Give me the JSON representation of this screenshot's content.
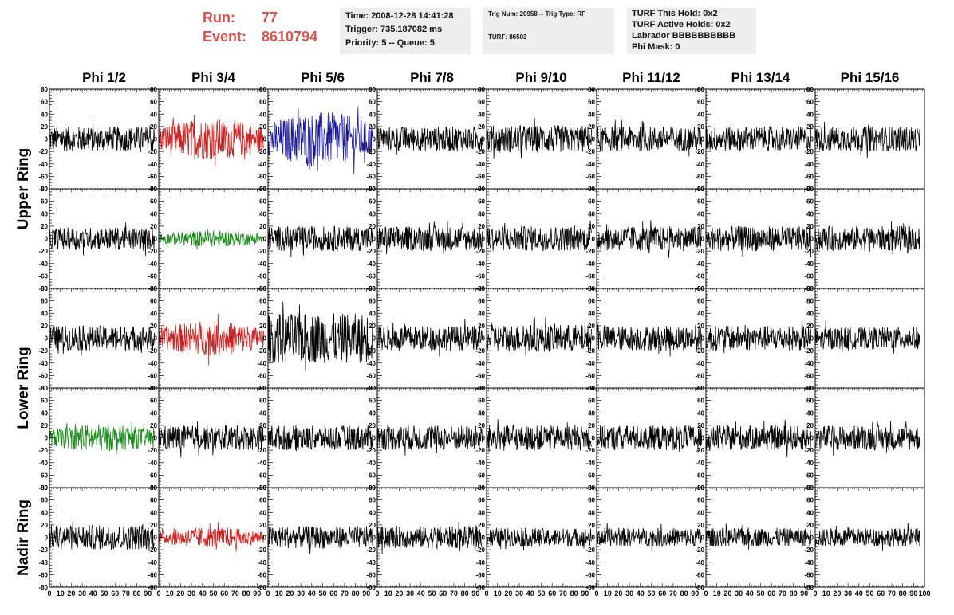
{
  "header": {
    "run_label": "Run:",
    "run_value": "77",
    "event_label": "Event:",
    "event_value": "8610794"
  },
  "info_box_1": {
    "time": "Time: 2008-12-28 14:41:28",
    "trigger": "Trigger: 735.187082 ms",
    "priority": "Priority: 5 -- Queue: 5"
  },
  "info_box_2": {
    "trig_num": "Trig Num: 20958 -- Trig Type: RF",
    "turf": "TURF: 86503"
  },
  "info_box_3": {
    "this_hold": "TURF This Hold: 0x2",
    "active_holds": "TURF Active Holds: 0x2",
    "labrador": "Labrador BBBBBBBBBB",
    "phi_mask": "Phi Mask: 0"
  },
  "colors": {
    "waveform": "#000000",
    "triggered_red": "#cc2222",
    "triggered_green": "#1a8a1a",
    "triggered_blue": "#1a1a99"
  },
  "chart_data": {
    "type": "line",
    "columns": [
      "Phi 1/2",
      "Phi 3/4",
      "Phi 5/6",
      "Phi 7/8",
      "Phi 9/10",
      "Phi 11/12",
      "Phi 13/14",
      "Phi 15/16"
    ],
    "rows": [
      {
        "title": "Upper Ring",
        "panels": 2
      },
      {
        "title": "Lower Ring",
        "panels": 2
      },
      {
        "title": "Nadir Ring",
        "panels": 1
      }
    ],
    "ylim": [
      -80,
      80
    ],
    "xlim": [
      0,
      100
    ],
    "y_ticks": [
      -80,
      -60,
      -40,
      -20,
      0,
      20,
      40,
      60,
      80
    ],
    "y_tick_labels": [
      "-80",
      "-60",
      "-40",
      "-20",
      "0",
      "20",
      "40",
      "60",
      "80"
    ],
    "x_ticks": [
      0,
      10,
      20,
      30,
      40,
      50,
      60,
      70,
      80,
      90,
      100
    ],
    "x_tick_labels": [
      "0",
      "10",
      "20",
      "30",
      "40",
      "50",
      "60",
      "70",
      "80",
      "90",
      "100"
    ],
    "highlighted": [
      {
        "panel_row": 0,
        "col": 1,
        "color": "red"
      },
      {
        "panel_row": 0,
        "col": 2,
        "color": "blue"
      },
      {
        "panel_row": 1,
        "col": 1,
        "color": "green"
      },
      {
        "panel_row": 2,
        "col": 1,
        "color": "red"
      },
      {
        "panel_row": 3,
        "col": 0,
        "color": "green"
      },
      {
        "panel_row": 4,
        "col": 1,
        "color": "red"
      }
    ],
    "amplitudes": [
      [
        20,
        30,
        40,
        20,
        22,
        20,
        20,
        20
      ],
      [
        18,
        12,
        20,
        20,
        20,
        20,
        20,
        20
      ],
      [
        20,
        25,
        40,
        20,
        22,
        20,
        20,
        18
      ],
      [
        20,
        20,
        20,
        20,
        20,
        20,
        20,
        20
      ],
      [
        20,
        15,
        18,
        18,
        15,
        15,
        15,
        15
      ]
    ]
  }
}
